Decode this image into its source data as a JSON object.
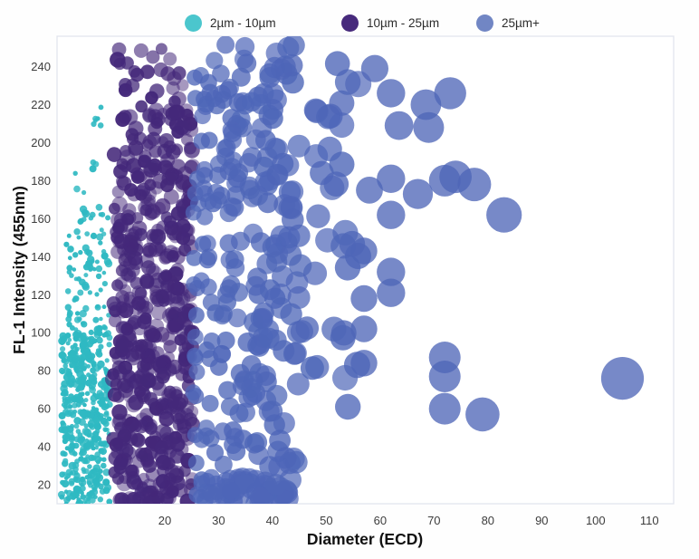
{
  "chart": {
    "background": "#fefefe",
    "plot_background": "#ffffff",
    "plot_border_color": "#e2e5ee",
    "tick_label_color": "#3d3d3d",
    "axis_title_color": "#111111"
  },
  "legend": {
    "items": [
      {
        "label": "2µm - 10µm",
        "color": "#4BC6CD"
      },
      {
        "label": "10µm - 25µm",
        "color": "#472A7C"
      },
      {
        "label": "25µm+",
        "color": "#7186C4"
      }
    ]
  },
  "chart_data": {
    "type": "scatter",
    "variant": "bubble",
    "title": "",
    "xlabel": "Diameter (ECD)",
    "ylabel": "FL-1 Intensity (455nm)",
    "xlim": [
      0,
      114.5
    ],
    "ylim": [
      10,
      256
    ],
    "x_ticks": [
      20,
      30,
      40,
      50,
      60,
      70,
      80,
      90,
      100,
      110
    ],
    "y_ticks": [
      20,
      40,
      60,
      80,
      100,
      120,
      140,
      160,
      180,
      200,
      220,
      240
    ],
    "grid": false,
    "legend_position": "top",
    "seed": 20240613,
    "series": [
      {
        "name": "2µm - 10µm",
        "color": "#2FB9C2",
        "alpha": [
          0.82,
          1.0
        ],
        "radius": [
          2.2,
          4.4
        ],
        "clusters": [
          {
            "d": [
              0.8,
              9.8
            ],
            "i": [
              10,
              100
            ],
            "count": 430
          },
          {
            "d": [
              1.6,
              9.6
            ],
            "i": [
              100,
              163
            ],
            "count": 85
          },
          {
            "d": [
              2.0,
              9.0
            ],
            "i": [
              163,
              228
            ],
            "count": 15
          }
        ],
        "points": []
      },
      {
        "name": "10µm - 25µm",
        "color": "#44287A",
        "alpha": [
          0.45,
          0.98
        ],
        "radius": [
          6.4,
          8.8
        ],
        "clusters": [
          {
            "d": [
              10.3,
              25.2
            ],
            "i": [
              10,
              170
            ],
            "count": 440
          },
          {
            "d": [
              10.6,
              25.2
            ],
            "i": [
              170,
              216
            ],
            "count": 92
          },
          {
            "d": [
              11.0,
              25.0
            ],
            "i": [
              216,
              250
            ],
            "count": 30
          }
        ],
        "points": []
      },
      {
        "name": "25µm+",
        "color": "#4E66B8",
        "alpha": [
          0.68,
          0.8
        ],
        "radius_rule": {
          "base": 4.2,
          "per_um": 0.185
        },
        "clusters": [
          {
            "d": [
              25.2,
              45.0
            ],
            "i": [
              120,
              252
            ],
            "count": 150
          },
          {
            "d": [
              25.2,
              45.0
            ],
            "i": [
              28,
              120
            ],
            "count": 92
          },
          {
            "d": [
              25.5,
              43.5
            ],
            "i": [
              10,
              24
            ],
            "count": 58
          },
          {
            "d": [
              45.0,
              56.0
            ],
            "i": [
              130,
              252
            ],
            "count": 24
          },
          {
            "d": [
              45.0,
              56.0
            ],
            "i": [
              60,
              130
            ],
            "count": 10
          }
        ],
        "points": [
          [
            59,
            239
          ],
          [
            62,
            226
          ],
          [
            68.5,
            220
          ],
          [
            73,
            226
          ],
          [
            63.5,
            209
          ],
          [
            69,
            208
          ],
          [
            58,
            175
          ],
          [
            62,
            181
          ],
          [
            67,
            173
          ],
          [
            72,
            180
          ],
          [
            74,
            182
          ],
          [
            77.5,
            178
          ],
          [
            62,
            162
          ],
          [
            83,
            162
          ],
          [
            57,
            143
          ],
          [
            62,
            132
          ],
          [
            62,
            121
          ],
          [
            57,
            118
          ],
          [
            57,
            102
          ],
          [
            57,
            84
          ],
          [
            72,
            87
          ],
          [
            72,
            77
          ],
          [
            72,
            60
          ],
          [
            79,
            57
          ],
          [
            105,
            76
          ]
        ]
      }
    ]
  }
}
